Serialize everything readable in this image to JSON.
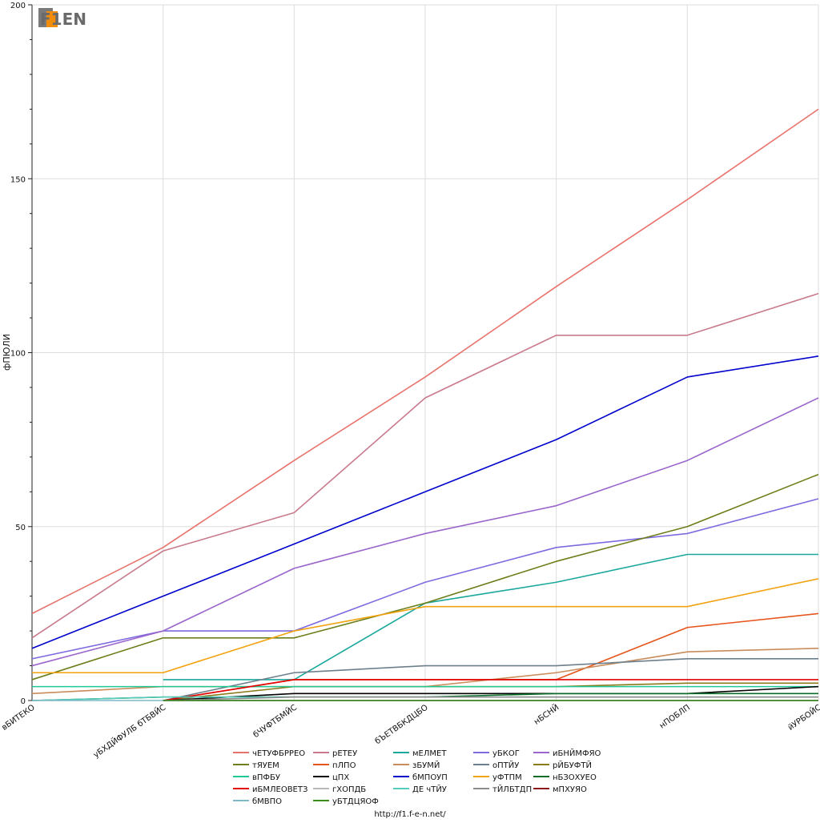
{
  "chart_data": {
    "type": "line",
    "title": "",
    "xlabel": "",
    "ylabel": "фПЮЛИ",
    "ylim": [
      0,
      200
    ],
    "yticks": [
      0,
      50,
      100,
      150,
      200
    ],
    "grid": true,
    "legend_position": "bottom",
    "categories": [
      "вБИТЕКО",
      "уБХДЙФУЛБ бТБВЙС",
      "бЧУФТБМЙС",
      "бЪЕТВБКДЦБО",
      "нБСНЙ",
      "нПОБЛП",
      "йУРБОЙС"
    ],
    "series": [
      {
        "name": "чЕТУФБРРЕО",
        "color": "#e8736c",
        "values": [
          25,
          44,
          69,
          93,
          119,
          144,
          170
        ]
      },
      {
        "name": "рЕТЕУ",
        "color": "#c97a8c",
        "values": [
          18,
          43,
          54,
          87,
          105,
          105,
          117
        ]
      },
      {
        "name": "мЕЛМЕТ",
        "color": "#1aa89c",
        "values": [
          null,
          6,
          6,
          28,
          34,
          42,
          42
        ]
      },
      {
        "name": "уБКОГ",
        "color": "#7d6ae0",
        "values": [
          12,
          20,
          20,
          34,
          44,
          48,
          58
        ]
      },
      {
        "name": "иБНЙМФЯО",
        "color": "#9a66cc",
        "values": [
          10,
          20,
          38,
          48,
          56,
          69,
          87
        ]
      },
      {
        "name": "тЯУЕМ",
        "color": "#6b7f1a",
        "values": [
          6,
          18,
          18,
          28,
          40,
          50,
          65
        ]
      },
      {
        "name": "пЛПО",
        "color": "#e6541b",
        "values": [
          null,
          0,
          6,
          6,
          6,
          21,
          25
        ]
      },
      {
        "name": "зБУМЙ",
        "color": "#c98c5a",
        "values": [
          2,
          4,
          4,
          4,
          8,
          14,
          15
        ]
      },
      {
        "name": "оПТЙУ",
        "color": "#6c7f8c",
        "values": [
          null,
          0,
          8,
          10,
          10,
          12,
          12
        ]
      },
      {
        "name": "рЙБУФТЙ",
        "color": "#8a7a1a",
        "values": [
          null,
          0,
          4,
          4,
          4,
          5,
          5
        ]
      },
      {
        "name": "вПФБУ",
        "color": "#1fc995",
        "values": [
          4,
          4,
          4,
          4,
          4,
          4,
          4
        ]
      },
      {
        "name": "цПХ",
        "color": "#000000",
        "values": [
          null,
          0,
          2,
          2,
          2,
          2,
          4
        ]
      },
      {
        "name": "бМПОУП",
        "color": "#0000cc",
        "values": [
          15,
          30,
          45,
          60,
          75,
          93,
          99
        ]
      },
      {
        "name": "уФТПМ",
        "color": "#f2a20c",
        "values": [
          8,
          8,
          20,
          27,
          27,
          27,
          35
        ]
      },
      {
        "name": "нБЗОХУЕО",
        "color": "#0b6e28",
        "values": [
          0,
          1,
          1,
          1,
          2,
          2,
          2
        ]
      },
      {
        "name": "иБМЛЕОВЕТЗ",
        "color": "#e20000",
        "values": [
          null,
          0,
          6,
          6,
          6,
          6,
          6
        ]
      },
      {
        "name": "гХОПДБ",
        "color": "#b8b8b8",
        "values": [
          null,
          0,
          0,
          0,
          0,
          0,
          0
        ]
      },
      {
        "name": "ДЕ чТЙУ",
        "color": "#55ccbb",
        "values": [
          0,
          1,
          1,
          1,
          1,
          1,
          1
        ]
      },
      {
        "name": "тЙЛБТДП",
        "color": "#8c8c8c",
        "values": [
          null,
          0,
          1,
          1,
          1,
          1,
          1
        ]
      },
      {
        "name": "мПХУЯО",
        "color": "#8b1a1a",
        "values": [
          null,
          0,
          0,
          0,
          0,
          0,
          0
        ]
      },
      {
        "name": "бМВПО",
        "color": "#7fb8c9",
        "values": [
          0,
          0,
          0,
          0,
          0,
          0,
          0
        ]
      },
      {
        "name": "уБТДЦЯОФ",
        "color": "#3b8a1a",
        "values": [
          null,
          0,
          0,
          0,
          0,
          0,
          0
        ]
      }
    ]
  },
  "legend": {
    "columns": [
      [
        "чЕТУФБРРЕО",
        "тЯУЕМ",
        "вПФБУ",
        "иБМЛЕОВЕТЗ",
        "бМВПО"
      ],
      [
        "рЕТЕУ",
        "пЛПО",
        "цПХ",
        "гХОПДБ",
        "уБТДЦЯОФ"
      ],
      [
        "мЕЛМЕТ",
        "зБУМЙ",
        "бМПОУП",
        "ДЕ чТЙУ"
      ],
      [
        "уБКОГ",
        "оПТЙУ",
        "уФТПМ",
        "тЙЛБТДП"
      ],
      [
        "иБНЙМФЯО",
        "рЙБУФТЙ",
        "нБЗОХУЕО",
        "мПХУЯО"
      ]
    ]
  },
  "logo": {
    "text": "F1EN"
  },
  "footer": {
    "url": "http://f1.f-e-n.net/"
  }
}
